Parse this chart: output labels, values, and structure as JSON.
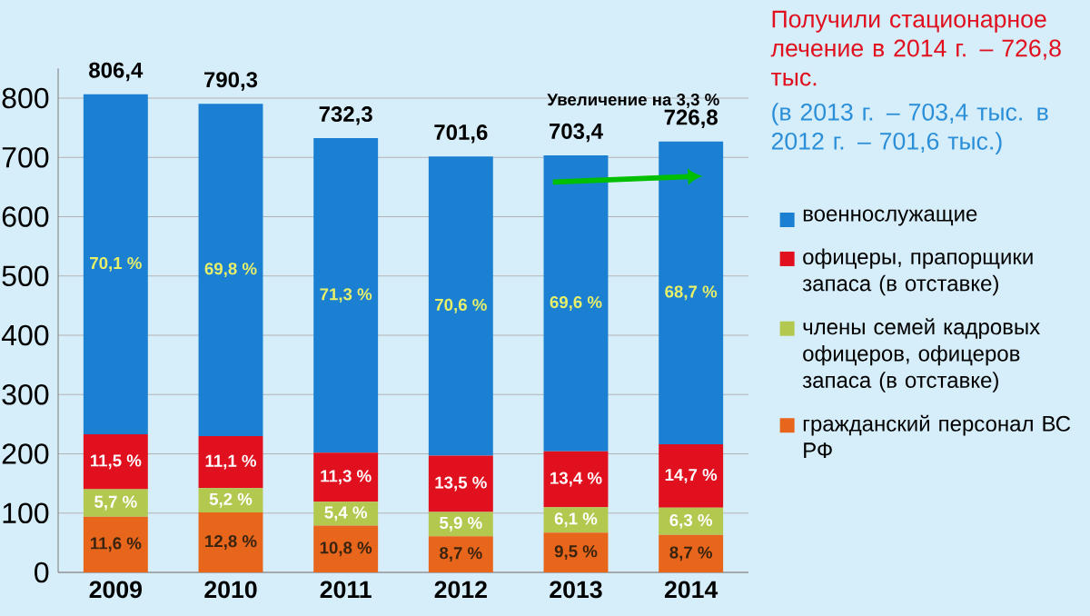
{
  "chart_data": {
    "type": "bar",
    "stacked": true,
    "categories": [
      "2009",
      "2010",
      "2011",
      "2012",
      "2013",
      "2014"
    ],
    "series": [
      {
        "name": "гражданский персонал ВС РФ",
        "color": "#e8661c",
        "values": [
          94,
          101,
          79,
          61,
          67,
          63
        ]
      },
      {
        "name": "члены семей кадровых офицеров, офицеров запаса (в отставке)",
        "color": "#b3c84e",
        "values": [
          46,
          41,
          40,
          41,
          43,
          46
        ]
      },
      {
        "name": "офицеры, прапорщики запаса (в отставке)",
        "color": "#e0101e",
        "values": [
          93,
          88,
          83,
          95,
          94,
          107
        ]
      },
      {
        "name": "военнослужащие",
        "color": "#1b80d2",
        "values": [
          573.4,
          560.3,
          530.3,
          504.6,
          499.4,
          510.8
        ]
      }
    ],
    "totals": [
      "806,4",
      "790,3",
      "732,3",
      "701,6",
      "703,4",
      "726,8"
    ],
    "ylim": [
      0,
      850
    ],
    "yticks": [
      0,
      100,
      200,
      300,
      400,
      500,
      600,
      700,
      800
    ],
    "grid": "y",
    "legend": "right",
    "annotations": [
      "Получили стационарное лечение в 2014 г. – 726,8 тыс.",
      "(в 2013 г. – 703,4 тыс. в 2012 г. – 701,6 тыс.)",
      "Увеличение на 3,3 %",
      "11,6 %",
      "12,8 %",
      "10,8 %",
      "8,7 %",
      "9,5 %",
      "8,7 %",
      "5,7 %",
      "5,2 %",
      "5,4 %",
      "5,9 %",
      "6,1 %",
      "6,3 %",
      "11,5 %",
      "11,1 %",
      "11,3 %",
      "13,5 %",
      "13,4 %",
      "14,7 %",
      "70,1 %",
      "69,8 %",
      "71,3 %",
      "70,6 %",
      "69,6 %",
      "68,7 %"
    ]
  }
}
